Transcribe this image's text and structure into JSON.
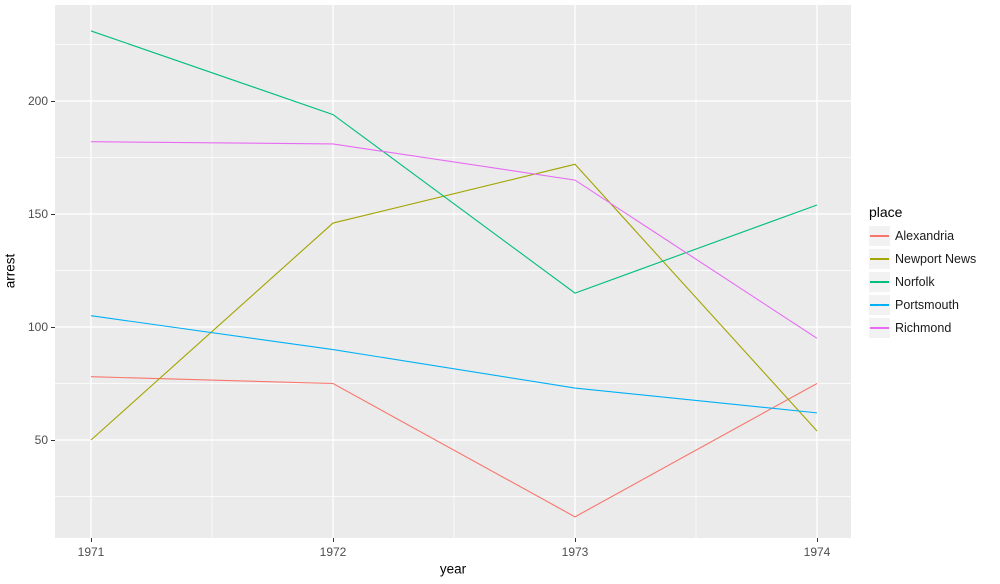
{
  "colors": {
    "figure_background": "#FFFFFF",
    "panel_background": "#EBEBEB",
    "gridline": "#FFFFFF",
    "tick_text": "#4D4D4D",
    "tick_mark": "#333333",
    "legend_key_background": "#F2F2F2"
  },
  "chart_data": {
    "type": "line",
    "title": "",
    "xlabel": "year",
    "ylabel": "arrest",
    "x": [
      1971,
      1972,
      1973,
      1974
    ],
    "x_tick_labels": [
      "1971",
      "1972",
      "1973",
      "1974"
    ],
    "y_ticks": [
      50,
      100,
      150,
      200
    ],
    "y_tick_labels": [
      "50",
      "100",
      "150",
      "200"
    ],
    "y_minor_ticks": [
      25,
      75,
      125,
      175,
      225
    ],
    "xlim": [
      1970.85,
      1974.15
    ],
    "ylim": [
      6,
      242
    ],
    "grid": "white major and minor gridlines on grey panel",
    "legend": {
      "title": "place",
      "position": "right"
    },
    "series": [
      {
        "name": "Alexandria",
        "color": "#F8766D",
        "values": [
          78,
          75,
          16,
          75
        ]
      },
      {
        "name": "Newport News",
        "color": "#A3A500",
        "values": [
          50,
          146,
          172,
          54
        ]
      },
      {
        "name": "Norfolk",
        "color": "#00BF7D",
        "values": [
          231,
          194,
          115,
          154
        ]
      },
      {
        "name": "Portsmouth",
        "color": "#00B0F6",
        "values": [
          105,
          90,
          73,
          62
        ]
      },
      {
        "name": "Richmond",
        "color": "#E76BF3",
        "values": [
          182,
          181,
          165,
          95
        ]
      }
    ]
  }
}
